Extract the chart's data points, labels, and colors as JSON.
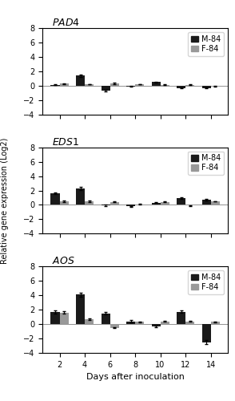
{
  "days": [
    2,
    4,
    6,
    8,
    10,
    12,
    14
  ],
  "genes": [
    "PAD4",
    "EDS1",
    "AOS"
  ],
  "M84": {
    "PAD4": [
      0.1,
      1.4,
      -0.7,
      -0.1,
      0.5,
      -0.3,
      -0.3
    ],
    "EDS1": [
      1.6,
      2.3,
      -0.1,
      -0.2,
      0.3,
      0.9,
      0.7
    ],
    "AOS": [
      1.7,
      4.1,
      1.5,
      0.4,
      -0.3,
      1.7,
      -2.5
    ]
  },
  "F84": {
    "PAD4": [
      0.3,
      0.2,
      0.3,
      0.2,
      0.1,
      0.1,
      -0.1
    ],
    "EDS1": [
      0.5,
      0.5,
      0.4,
      0.1,
      0.4,
      -0.1,
      0.5
    ],
    "AOS": [
      1.6,
      0.7,
      -0.5,
      0.3,
      0.4,
      0.4,
      0.3
    ]
  },
  "M84_err": {
    "PAD4": [
      0.05,
      0.15,
      0.1,
      0.05,
      0.08,
      0.05,
      0.05
    ],
    "EDS1": [
      0.12,
      0.2,
      0.1,
      0.08,
      0.08,
      0.1,
      0.1
    ],
    "AOS": [
      0.25,
      0.3,
      0.2,
      0.12,
      0.1,
      0.15,
      0.3
    ]
  },
  "F84_err": {
    "PAD4": [
      0.05,
      0.05,
      0.08,
      0.05,
      0.05,
      0.05,
      0.05
    ],
    "EDS1": [
      0.08,
      0.08,
      0.05,
      0.05,
      0.05,
      0.05,
      0.05
    ],
    "AOS": [
      0.15,
      0.1,
      0.1,
      0.08,
      0.08,
      0.08,
      0.08
    ]
  },
  "color_M84": "#1a1a1a",
  "color_F84": "#999999",
  "ylim": [
    -4,
    8
  ],
  "yticks": [
    -4,
    -2,
    0,
    2,
    4,
    6,
    8
  ],
  "ylabel": "Relative gene expression (Log2)",
  "xlabel": "Days after inoculation",
  "bar_width": 0.35,
  "title_fontsize": 9,
  "label_fontsize": 7,
  "tick_fontsize": 7,
  "legend_fontsize": 7
}
